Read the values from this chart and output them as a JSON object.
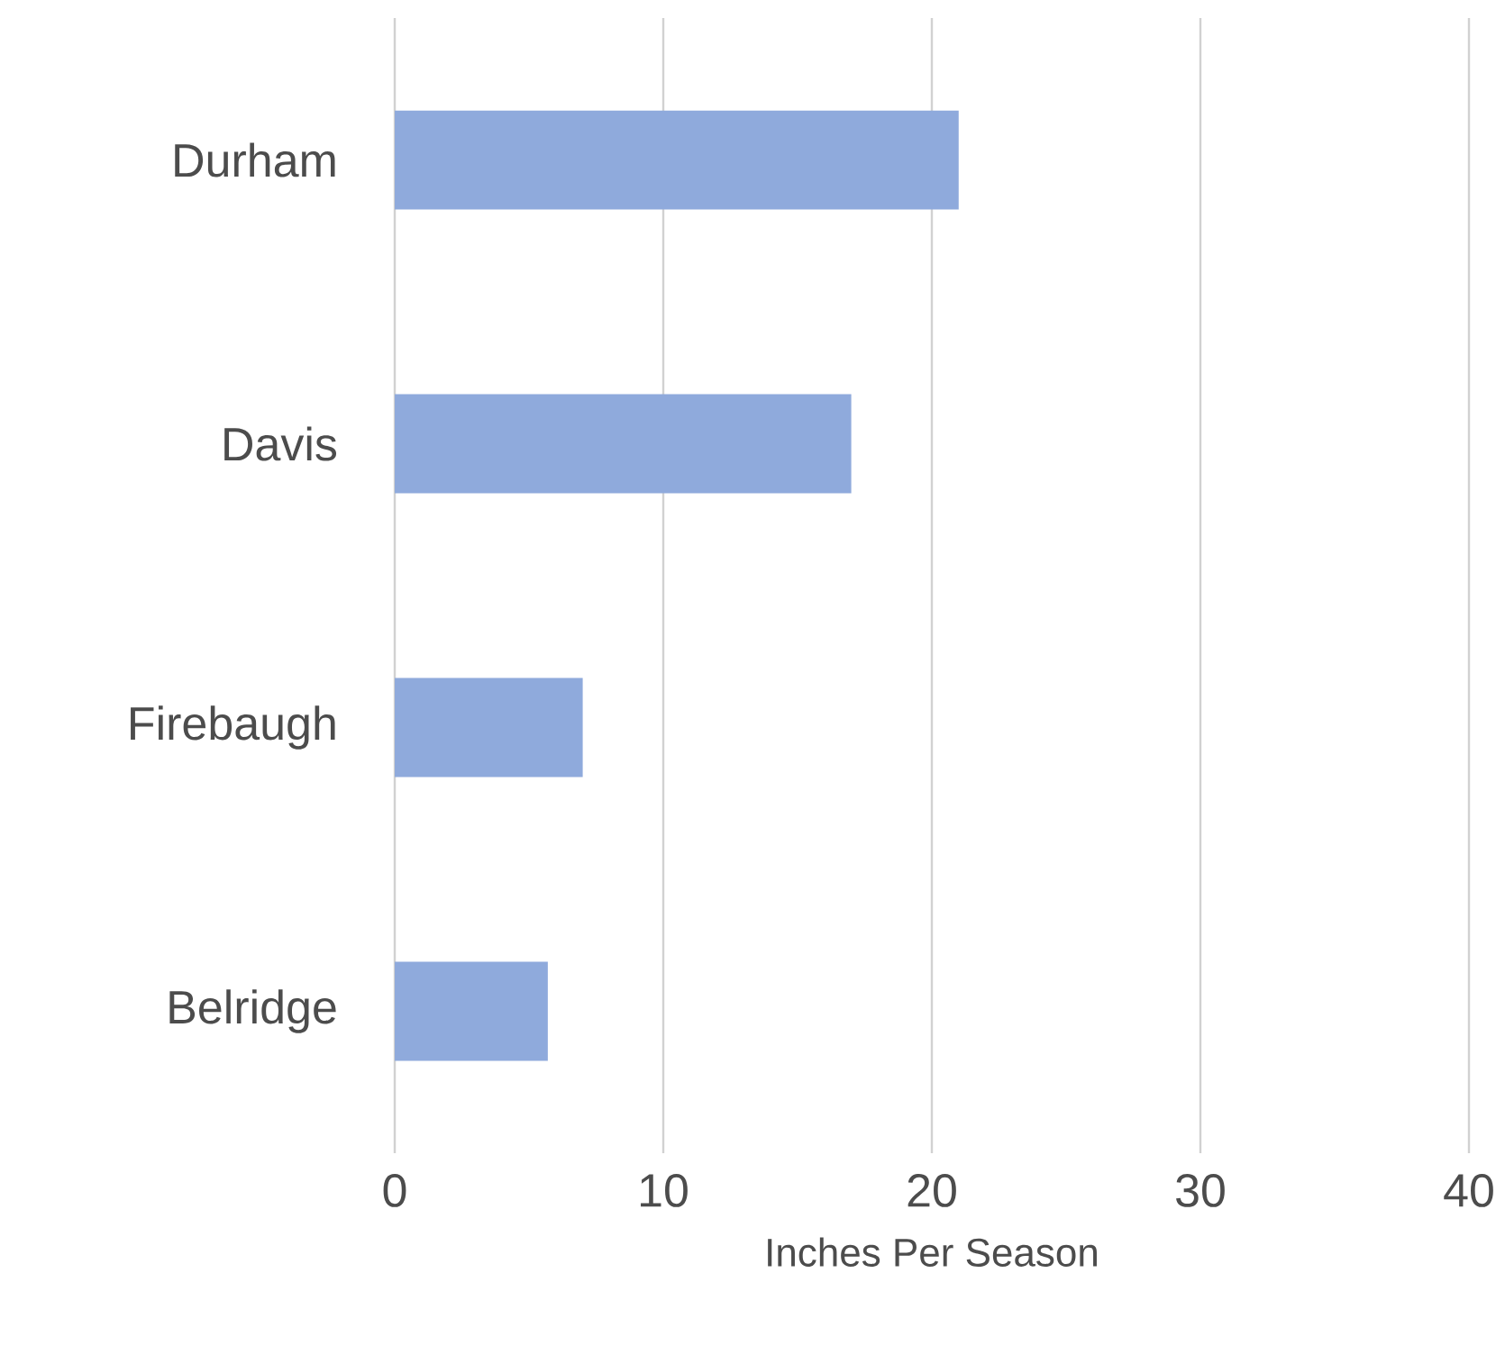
{
  "chart_data": {
    "type": "bar",
    "orientation": "horizontal",
    "xlabel": "Inches Per Season",
    "categories": [
      "Durham",
      "Davis",
      "Firebaugh",
      "Belridge"
    ],
    "values": [
      21.0,
      17.0,
      7.0,
      5.7
    ],
    "color": "#8faadc",
    "xlim": [
      0,
      40
    ],
    "xticks": [
      0,
      10,
      20,
      30,
      40
    ],
    "grid": "x"
  }
}
